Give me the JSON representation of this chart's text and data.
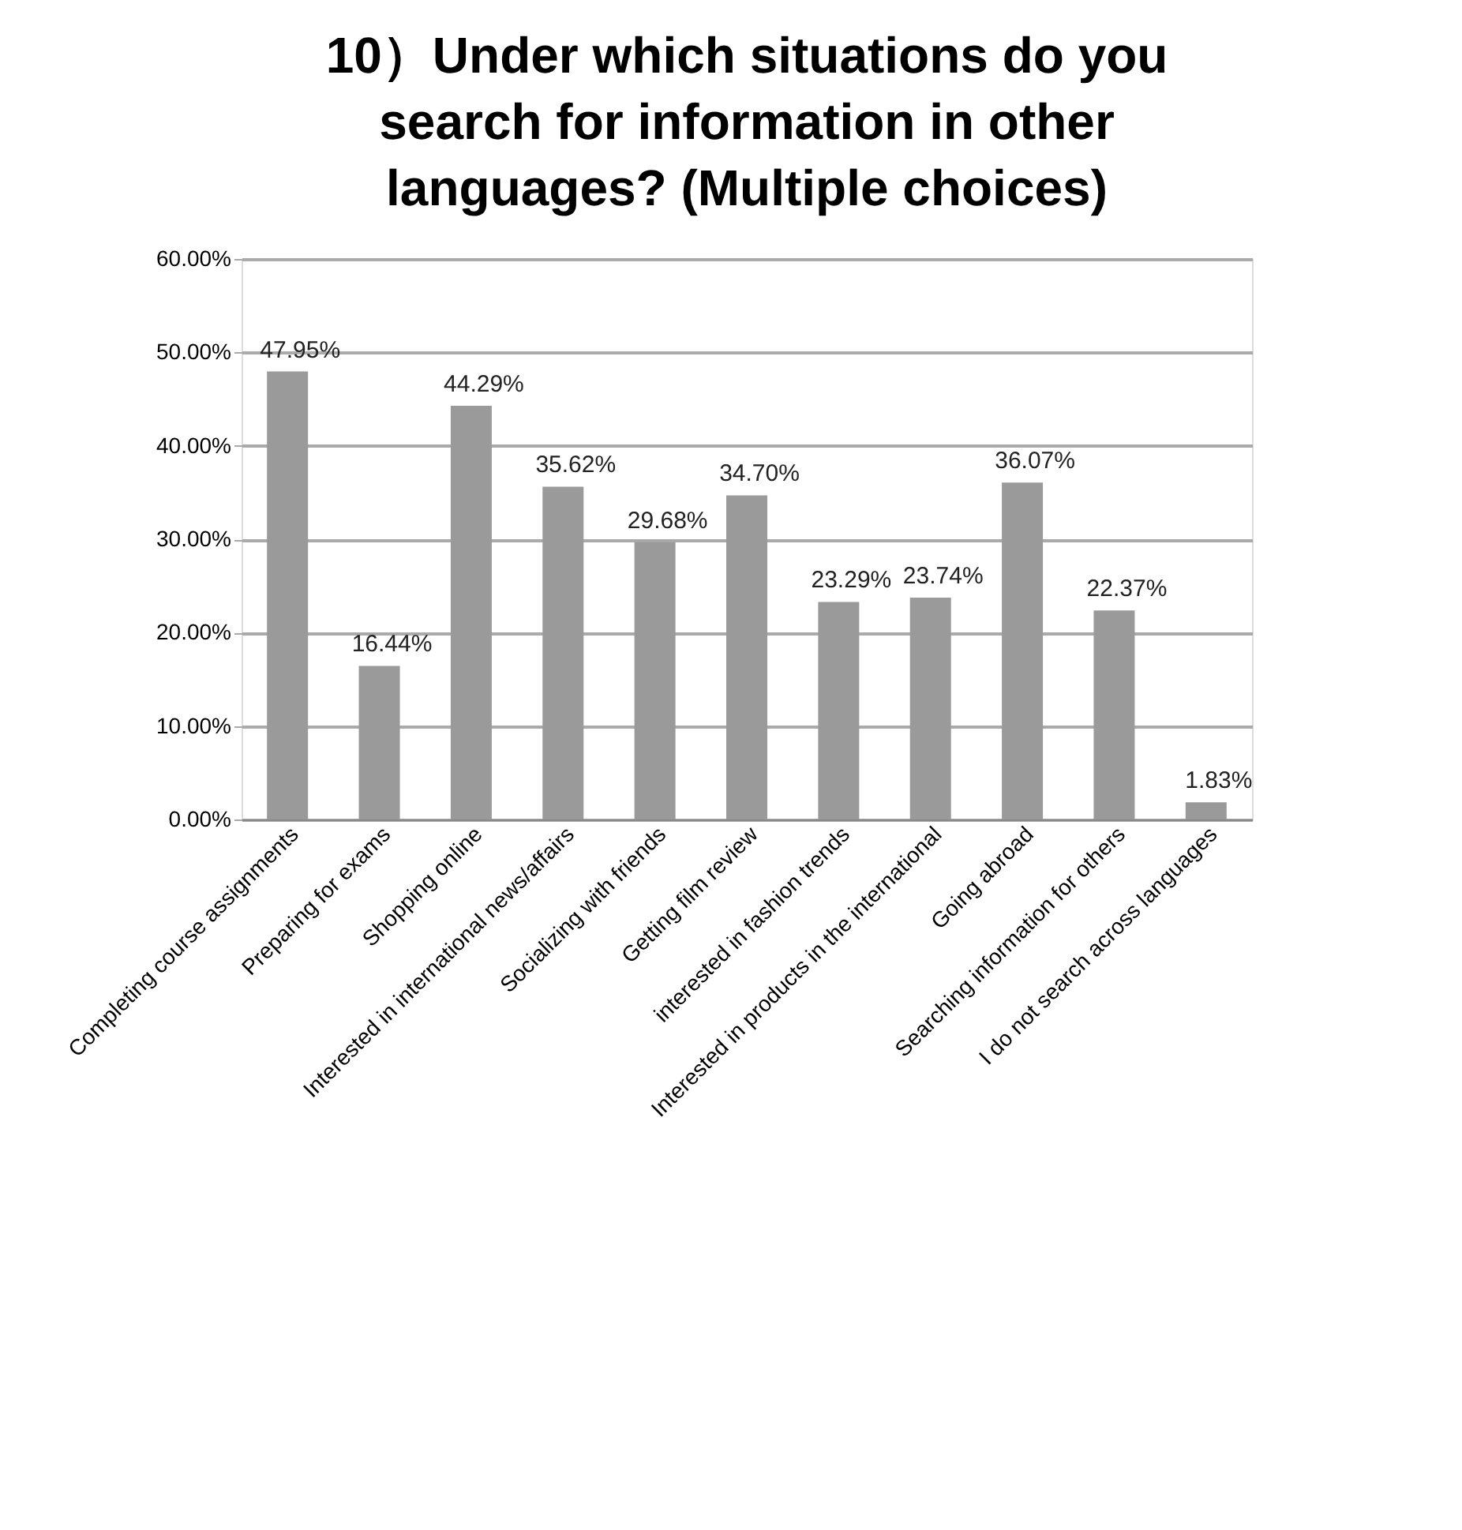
{
  "chart_data": {
    "type": "bar",
    "title": [
      "10）Under which situations do you",
      "search for information in other",
      "languages? (Multiple choices)"
    ],
    "categories": [
      "Completing course assignments",
      "Preparing for exams",
      "Shopping online",
      "Interested in international news/affairs",
      "Socializing with friends",
      "Getting film review",
      "interested in fashion trends",
      "Interested in products in the international",
      "Going abroad",
      "Searching information for others",
      "I do not search across languages"
    ],
    "values": [
      47.95,
      16.44,
      44.29,
      35.62,
      29.68,
      34.7,
      23.29,
      23.74,
      36.07,
      22.37,
      1.83
    ],
    "value_labels": [
      "47.95%",
      "16.44%",
      "44.29%",
      "35.62%",
      "29.68%",
      "34.70%",
      "23.29%",
      "23.74%",
      "36.07%",
      "22.37%",
      "1.83%"
    ],
    "color": "#9a9a9a",
    "ylim": [
      0,
      60
    ],
    "yticks": [
      {
        "value": 0,
        "label": "0.00%"
      },
      {
        "value": 10,
        "label": "10.00%"
      },
      {
        "value": 20,
        "label": "20.00%"
      },
      {
        "value": 30,
        "label": "30.00%"
      },
      {
        "value": 40,
        "label": "40.00%"
      },
      {
        "value": 50,
        "label": "50.00%"
      },
      {
        "value": 60,
        "label": "60.00%"
      }
    ],
    "grid": "y"
  }
}
